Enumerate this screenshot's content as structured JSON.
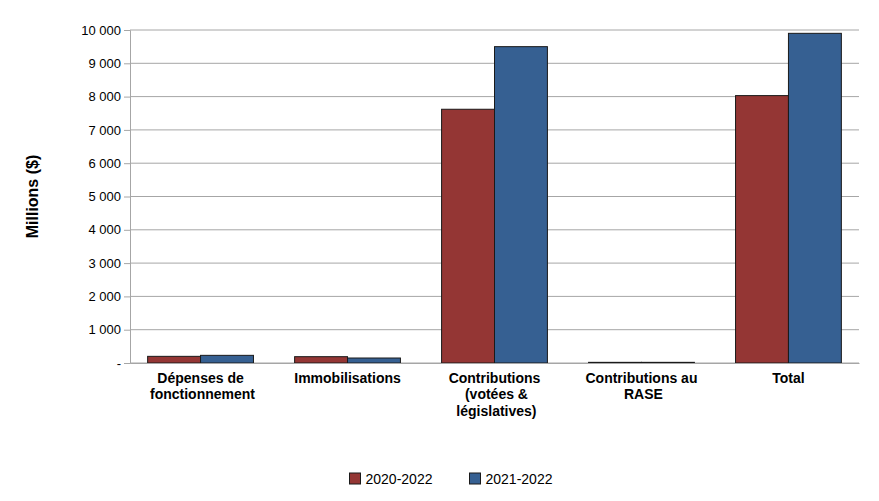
{
  "chart_data": {
    "type": "bar",
    "ylabel": "Millions ($)",
    "categories": [
      "Dépenses de fonctionnement",
      "Immobilisations",
      "Contributions (votées & législatives)",
      "Contributions au RASE",
      "Total"
    ],
    "series": [
      {
        "name": "2020-2022",
        "color": "#943634",
        "values": [
          200,
          190,
          7620,
          20,
          8030
        ]
      },
      {
        "name": "2021-2022",
        "color": "#366092",
        "values": [
          230,
          150,
          9500,
          20,
          9900
        ]
      }
    ],
    "ylim": [
      0,
      10000
    ],
    "yticks": [
      {
        "value": 0,
        "label": "-"
      },
      {
        "value": 1000,
        "label": "1 000"
      },
      {
        "value": 2000,
        "label": "2 000"
      },
      {
        "value": 3000,
        "label": "3 000"
      },
      {
        "value": 4000,
        "label": "4 000"
      },
      {
        "value": 5000,
        "label": "5 000"
      },
      {
        "value": 6000,
        "label": "6 000"
      },
      {
        "value": 7000,
        "label": "7 000"
      },
      {
        "value": 8000,
        "label": "8 000"
      },
      {
        "value": 9000,
        "label": "9 000"
      },
      {
        "value": 10000,
        "label": "10 000"
      }
    ],
    "grid": true,
    "legend": "bottom"
  }
}
